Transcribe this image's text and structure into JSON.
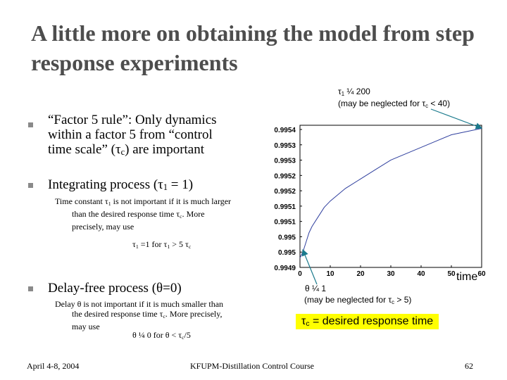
{
  "title": "A little more on obtaining the model from step response experiments",
  "bullets": [
    {
      "text_1": "“Factor 5 rule”: Only dynamics",
      "text_2": "within a factor 5 from “control",
      "text_3a": "time scale” (τ",
      "text_3sub": "c",
      "text_3b": ") are important"
    },
    {
      "text_a": "Integrating process (τ",
      "text_sub": "1",
      "text_b": " = 1)",
      "detail_1a": "Time constant τ",
      "detail_1sub": "1",
      "detail_1b": " is not important if it is much larger",
      "detail_2a": "than the desired response time τ",
      "detail_2sub": "c",
      "detail_2b": ". More",
      "detail_3": "precisely, may use",
      "formula": {
        "a": "τ",
        "a_sub": "1",
        "b": " =1 for  τ",
        "b_sub": "1",
        "c": " >  5 τ",
        "c_sub": "c"
      }
    },
    {
      "text": "Delay-free process (θ=0)",
      "detail_1": "Delay θ is not important if it is much smaller than",
      "detail_2a": "the desired response time τ",
      "detail_2sub": "c",
      "detail_2b": ". More precisely,",
      "detail_3": "may use",
      "formula": {
        "a": "θ ¼ 0 for θ < τ",
        "a_sub": "c",
        "b": "/5"
      }
    }
  ],
  "annotations": {
    "tau1_a": "τ",
    "tau1_sub": "1",
    "tau1_b": " ¼ 200",
    "tau1_note_a": "(may be neglected for τ",
    "tau1_note_sub": "c",
    "tau1_note_b": " < 40)",
    "theta": "θ ¼ 1",
    "theta_note_a": "(may be neglected for τ",
    "theta_note_sub": "c",
    "theta_note_b": " > 5)",
    "tauc_a": "τ",
    "tauc_sub": "c",
    "tauc_b": " = desired response time",
    "time_label": "time"
  },
  "colors": {
    "line": "#2f3f9e",
    "arrow": "#1a7a8c",
    "highlight": "#ffff00",
    "bullet": "#8a8a8a"
  },
  "chart_data": {
    "type": "line",
    "x_ticks": [
      "0",
      "10",
      "20",
      "30",
      "40",
      "50",
      "60"
    ],
    "y_ticks": [
      "0.9954",
      "0.9953",
      "0.9953",
      "0.9952",
      "0.9952",
      "0.9951",
      "0.9951",
      "0.995",
      "0.995",
      "0.9949"
    ],
    "xlim": [
      0,
      60
    ],
    "ylim": [
      0.99495,
      0.9954
    ],
    "x": [
      0,
      1,
      2,
      3,
      4,
      6,
      8,
      10,
      15,
      20,
      25,
      30,
      35,
      40,
      45,
      50,
      55,
      60
    ],
    "y": [
      0.99498,
      0.995,
      0.99503,
      0.99506,
      0.99508,
      0.99511,
      0.99514,
      0.99516,
      0.9952,
      0.99523,
      0.99526,
      0.99529,
      0.99531,
      0.99533,
      0.99535,
      0.99537,
      0.99538,
      0.99539
    ],
    "grid": false
  },
  "footer": {
    "date": "April 4-8, 2004",
    "course": "KFUPM-Distillation Control Course",
    "page": "62"
  }
}
